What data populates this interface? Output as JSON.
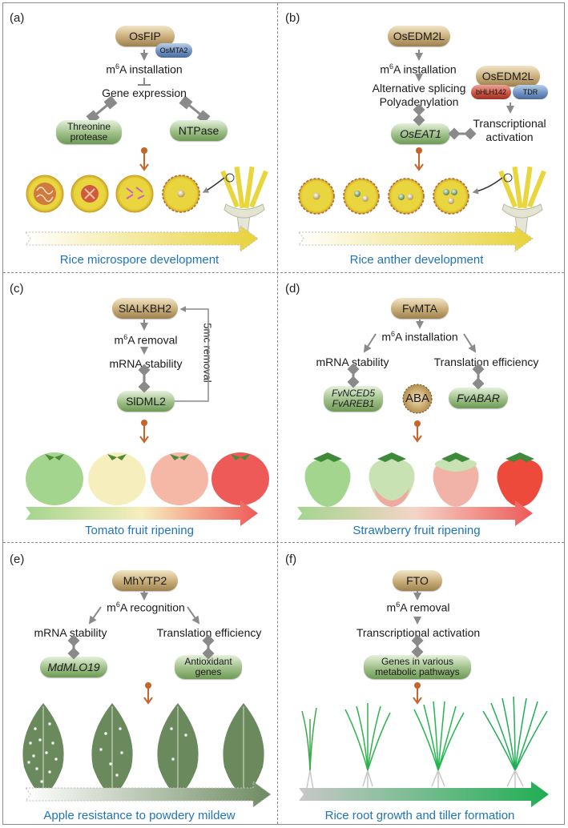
{
  "panels": {
    "a": {
      "label": "(a)",
      "top_protein": "OsFIP",
      "partner": "OsMTA2",
      "step1": "m",
      "step1_sup": "6",
      "step1_rest": "A installation",
      "step2": "Gene expression",
      "target_left": "Threonine protease",
      "target_left_l1": "Threonine",
      "target_left_l2": "protease",
      "target_right": "NTPase",
      "caption": "Rice microspore development"
    },
    "b": {
      "label": "(b)",
      "top_protein": "OsEDM2L",
      "step1_sup": "6",
      "step1_rest": "A installation",
      "step2_l1": "Alternative splicing",
      "step2_l2": "Polyadenylation",
      "target": "OsEAT1",
      "complex_top": "OsEDM2L",
      "complex_left": "bHLH142",
      "complex_right": "TDR",
      "side_l1": "Transcriptional",
      "side_l2": "activation",
      "caption": "Rice anther development"
    },
    "c": {
      "label": "(c)",
      "top_protein": "SlALKBH2",
      "step1_sup": "6",
      "step1_rest": "A removal",
      "step2": "mRNA stability",
      "target": "SlDML2",
      "loop_label": "5mc removal",
      "caption": "Tomato fruit ripening"
    },
    "d": {
      "label": "(d)",
      "top_protein": "FvMTA",
      "step1_sup": "6",
      "step1_rest": "A installation",
      "left_step": "mRNA stability",
      "right_step": "Translation efficiency",
      "target_left_l1": "FvNCED5",
      "target_left_l2": "FvAREB1",
      "center": "ABA",
      "target_right": "FvABAR",
      "caption": "Strawberry fruit ripening"
    },
    "e": {
      "label": "(e)",
      "top_protein": "MhYTP2",
      "step1_sup": "6",
      "step1_rest": "A recognition",
      "left_step": "mRNA stability",
      "right_step": "Translation efficiency",
      "target_left": "MdMLO19",
      "target_right_l1": "Antioxidant",
      "target_right_l2": "genes",
      "caption": "Apple resistance to powdery mildew"
    },
    "f": {
      "label": "(f)",
      "top_protein": "FTO",
      "step1_sup": "6",
      "step1_rest": "A removal",
      "step2": "Transcriptional activation",
      "target_l1": "Genes in various",
      "target_l2": "metabolic pathways",
      "caption": "Rice root growth and tiller formation"
    }
  },
  "m_letter": "m",
  "colors": {
    "caption": "#1f74b8",
    "arrow_grey": "#8a8a8a",
    "effect_orange": "#c8642a",
    "pollen_yellow": "#e8d23a",
    "tomato_green": "#a4d58e",
    "tomato_yellow": "#f7eebe",
    "tomato_pink": "#f6b8a6",
    "tomato_red": "#ee5a57"
  }
}
